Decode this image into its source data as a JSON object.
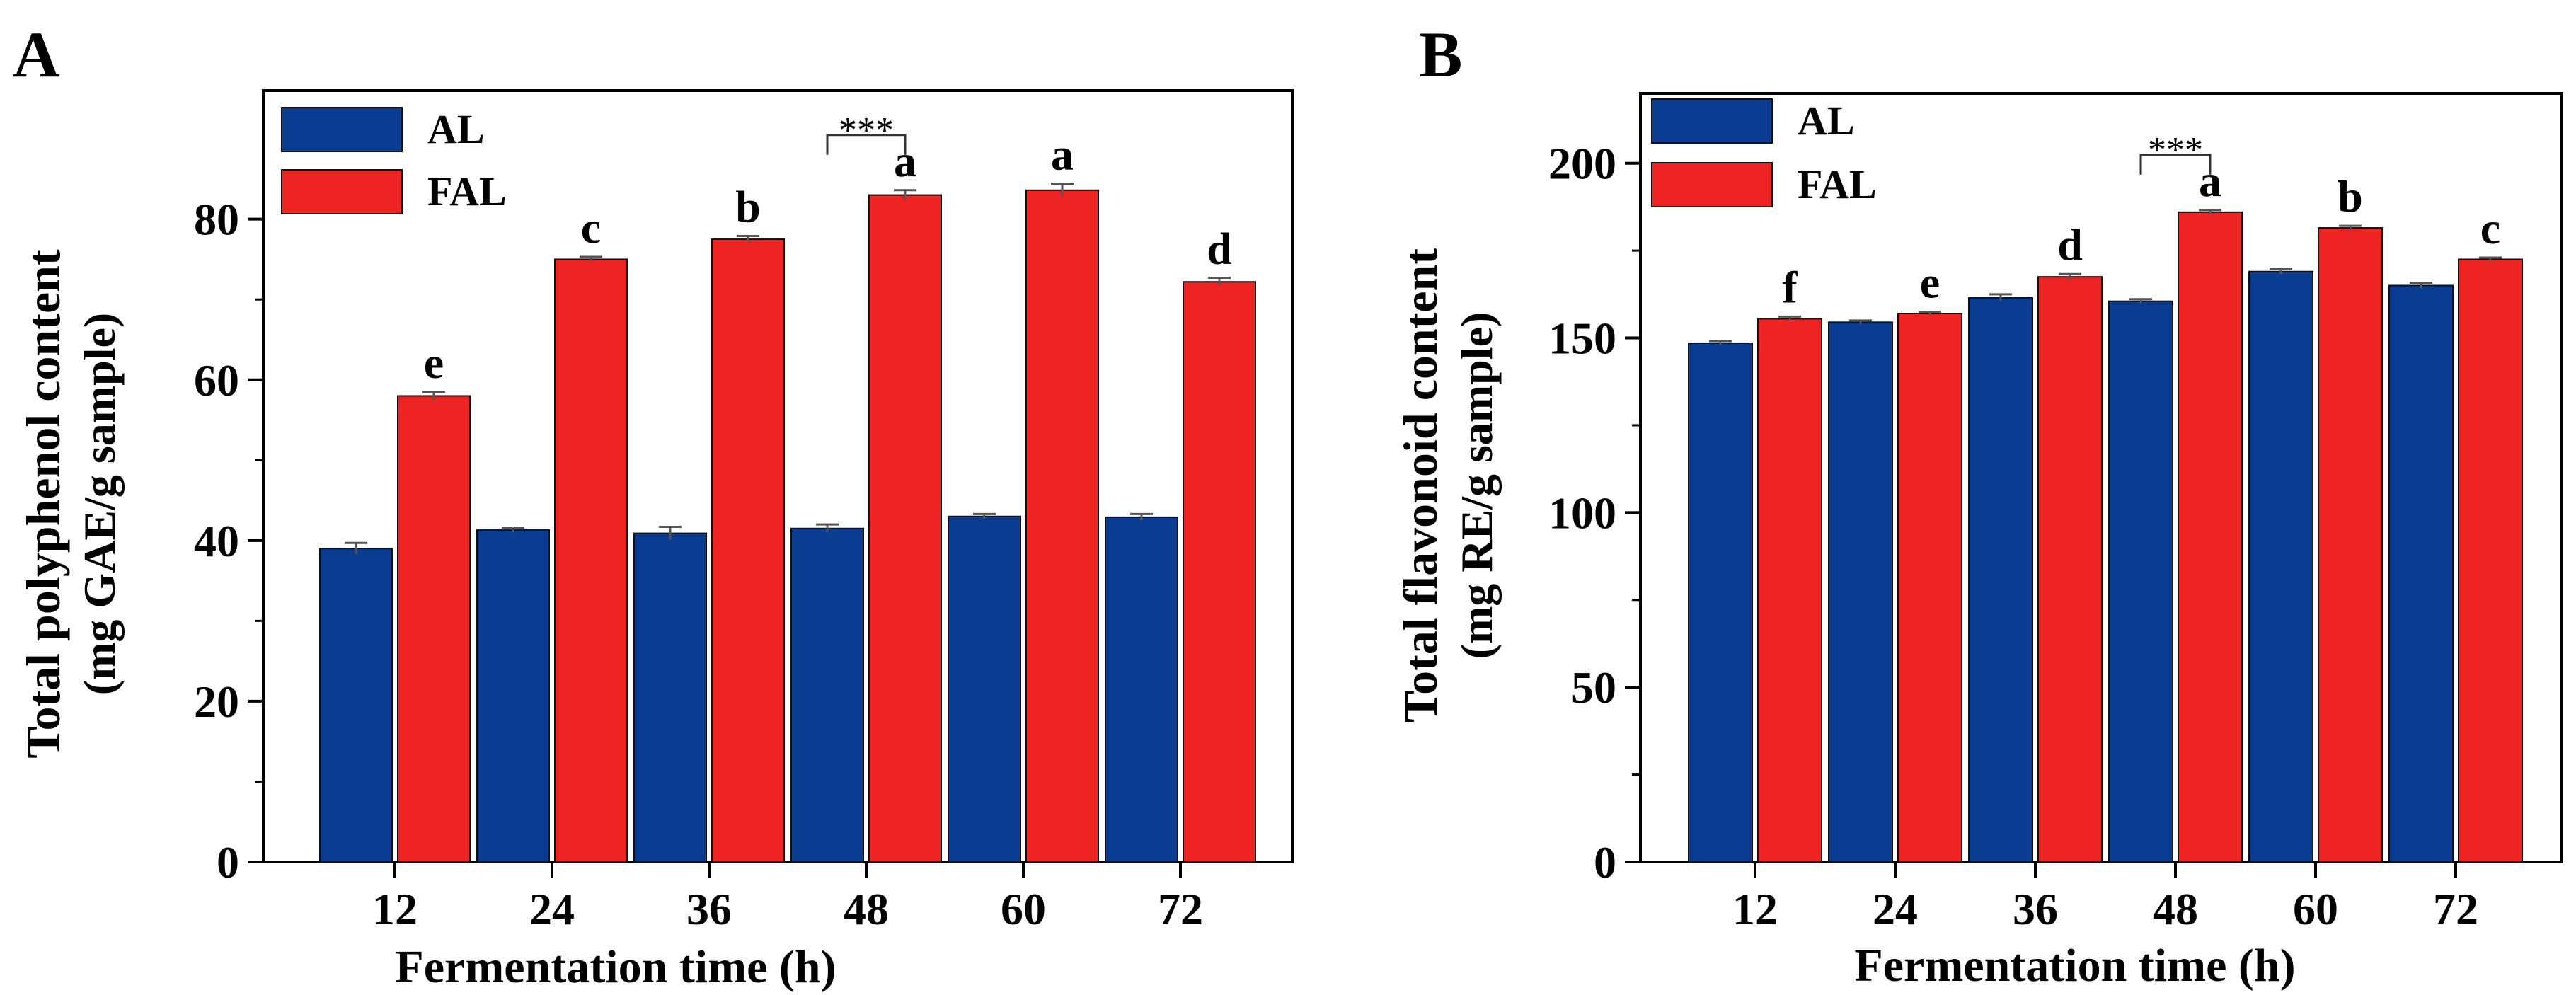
{
  "colors": {
    "AL": "#0a3d91",
    "FAL": "#ee2424",
    "axis": "#000000",
    "errorbar": "#555555"
  },
  "chart_data": [
    {
      "panel_label": "A",
      "type": "bar",
      "categories": [
        "12",
        "24",
        "36",
        "48",
        "60",
        "72"
      ],
      "xlabel": "Fermentation time (h)",
      "ylabel_line1": "Total polyphenol content",
      "ylabel_line2": "(mg GAE/g sample)",
      "ylim": [
        0,
        96
      ],
      "yticks": [
        0,
        20,
        40,
        60,
        80
      ],
      "ytick_labels": [
        "0",
        "20",
        "40",
        "60",
        "80"
      ],
      "grid": false,
      "legend": {
        "placement": "top-left",
        "entries": [
          "AL",
          "FAL"
        ]
      },
      "series": [
        {
          "name": "AL",
          "values": [
            39.0,
            41.3,
            40.9,
            41.5,
            43.0,
            42.9
          ],
          "errors": [
            0.7,
            0.3,
            0.8,
            0.5,
            0.3,
            0.4
          ]
        },
        {
          "name": "FAL",
          "values": [
            58.0,
            75.0,
            77.5,
            83.0,
            83.6,
            72.2
          ],
          "errors": [
            0.5,
            0.3,
            0.4,
            0.6,
            0.8,
            0.5
          ]
        }
      ],
      "letters": [
        "e",
        "c",
        "b",
        "a",
        "a",
        "d"
      ],
      "significance": {
        "category": "48",
        "label": "***"
      }
    },
    {
      "panel_label": "B",
      "type": "bar",
      "categories": [
        "12",
        "24",
        "36",
        "48",
        "60",
        "72"
      ],
      "xlabel": "Fermentation time (h)",
      "ylabel_line1": "Total flavonoid content",
      "ylabel_line2": "(mg RE/g sample)",
      "ylim": [
        0,
        220
      ],
      "yticks": [
        0,
        50,
        100,
        150,
        200
      ],
      "ytick_labels": [
        "0",
        "50",
        "100",
        "150",
        "200"
      ],
      "grid": false,
      "legend": {
        "placement": "top-left",
        "entries": [
          "AL",
          "FAL"
        ]
      },
      "series": [
        {
          "name": "AL",
          "values": [
            148.5,
            154.5,
            161.5,
            160.5,
            169.0,
            165.0
          ],
          "errors": [
            0.6,
            0.5,
            1.0,
            0.6,
            0.7,
            0.8
          ]
        },
        {
          "name": "FAL",
          "values": [
            155.5,
            157.0,
            167.5,
            186.0,
            181.5,
            172.5
          ],
          "errors": [
            0.6,
            0.5,
            0.8,
            0.6,
            0.6,
            0.5
          ]
        }
      ],
      "letters": [
        "f",
        "e",
        "d",
        "a",
        "b",
        "c"
      ],
      "significance": {
        "category": "48",
        "label": "***"
      }
    }
  ]
}
